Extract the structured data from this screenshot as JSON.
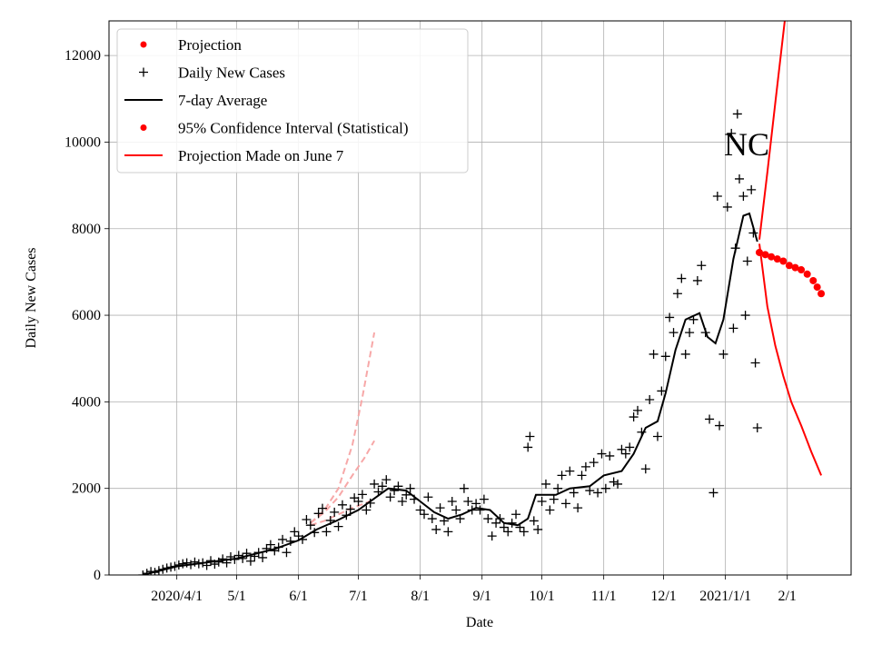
{
  "chart_data": {
    "type": "scatter",
    "xlabel": "Date",
    "ylabel": "Daily New Cases",
    "annotation": "NC",
    "grid": true,
    "legend_position": "top-left",
    "xlim": [
      "2020-02-27",
      "2021-03-05"
    ],
    "ylim": [
      0,
      12800
    ],
    "x_ticks": [
      {
        "date": "2020-04-01",
        "label": "2020/4/1"
      },
      {
        "date": "2020-05-01",
        "label": "5/1"
      },
      {
        "date": "2020-06-01",
        "label": "6/1"
      },
      {
        "date": "2020-07-01",
        "label": "7/1"
      },
      {
        "date": "2020-08-01",
        "label": "8/1"
      },
      {
        "date": "2020-09-01",
        "label": "9/1"
      },
      {
        "date": "2020-10-01",
        "label": "10/1"
      },
      {
        "date": "2020-11-01",
        "label": "11/1"
      },
      {
        "date": "2020-12-01",
        "label": "12/1"
      },
      {
        "date": "2021-01-01",
        "label": "2021/1/1"
      },
      {
        "date": "2021-02-01",
        "label": "2/1"
      }
    ],
    "y_ticks": [
      0,
      2000,
      4000,
      6000,
      8000,
      10000,
      12000
    ],
    "legend": [
      {
        "label": "Projection",
        "marker": "dot",
        "color": "#ff0000"
      },
      {
        "label": "Daily New Cases",
        "marker": "plus",
        "color": "#000000"
      },
      {
        "label": "7-day Average",
        "marker": "line",
        "color": "#000000"
      },
      {
        "label": "95% Confidence Interval (Statistical)",
        "marker": "dot",
        "color": "#ff0000"
      },
      {
        "label": "Projection Made on June 7",
        "marker": "line",
        "color": "#ff0000"
      }
    ],
    "series": [
      {
        "name": "Daily New Cases",
        "kind": "scatter",
        "color": "#000000",
        "points": [
          [
            "2020-03-15",
            0
          ],
          [
            "2020-03-17",
            40
          ],
          [
            "2020-03-19",
            80
          ],
          [
            "2020-03-21",
            60
          ],
          [
            "2020-03-23",
            100
          ],
          [
            "2020-03-25",
            130
          ],
          [
            "2020-03-27",
            160
          ],
          [
            "2020-03-29",
            180
          ],
          [
            "2020-03-31",
            200
          ],
          [
            "2020-04-02",
            230
          ],
          [
            "2020-04-04",
            260
          ],
          [
            "2020-04-06",
            280
          ],
          [
            "2020-04-08",
            240
          ],
          [
            "2020-04-10",
            300
          ],
          [
            "2020-04-12",
            260
          ],
          [
            "2020-04-14",
            280
          ],
          [
            "2020-04-16",
            220
          ],
          [
            "2020-04-18",
            330
          ],
          [
            "2020-04-20",
            250
          ],
          [
            "2020-04-22",
            300
          ],
          [
            "2020-04-24",
            370
          ],
          [
            "2020-04-26",
            280
          ],
          [
            "2020-04-28",
            420
          ],
          [
            "2020-04-30",
            360
          ],
          [
            "2020-05-02",
            450
          ],
          [
            "2020-05-04",
            380
          ],
          [
            "2020-05-06",
            500
          ],
          [
            "2020-05-08",
            320
          ],
          [
            "2020-05-10",
            430
          ],
          [
            "2020-05-12",
            520
          ],
          [
            "2020-05-14",
            400
          ],
          [
            "2020-05-16",
            610
          ],
          [
            "2020-05-18",
            700
          ],
          [
            "2020-05-20",
            560
          ],
          [
            "2020-05-22",
            640
          ],
          [
            "2020-05-24",
            820
          ],
          [
            "2020-05-26",
            520
          ],
          [
            "2020-05-28",
            780
          ],
          [
            "2020-05-30",
            1000
          ],
          [
            "2020-06-01",
            900
          ],
          [
            "2020-06-03",
            820
          ],
          [
            "2020-06-05",
            1280
          ],
          [
            "2020-06-07",
            1150
          ],
          [
            "2020-06-09",
            980
          ],
          [
            "2020-06-11",
            1420
          ],
          [
            "2020-06-13",
            1540
          ],
          [
            "2020-06-15",
            1000
          ],
          [
            "2020-06-17",
            1260
          ],
          [
            "2020-06-19",
            1450
          ],
          [
            "2020-06-21",
            1120
          ],
          [
            "2020-06-23",
            1620
          ],
          [
            "2020-06-25",
            1380
          ],
          [
            "2020-06-27",
            1520
          ],
          [
            "2020-06-29",
            1780
          ],
          [
            "2020-07-01",
            1700
          ],
          [
            "2020-07-03",
            1860
          ],
          [
            "2020-07-05",
            1500
          ],
          [
            "2020-07-07",
            1660
          ],
          [
            "2020-07-09",
            2100
          ],
          [
            "2020-07-11",
            1920
          ],
          [
            "2020-07-13",
            2050
          ],
          [
            "2020-07-15",
            2200
          ],
          [
            "2020-07-17",
            1800
          ],
          [
            "2020-07-19",
            1950
          ],
          [
            "2020-07-21",
            2050
          ],
          [
            "2020-07-23",
            1700
          ],
          [
            "2020-07-25",
            1850
          ],
          [
            "2020-07-27",
            2000
          ],
          [
            "2020-07-29",
            1750
          ],
          [
            "2020-08-01",
            1500
          ],
          [
            "2020-08-03",
            1400
          ],
          [
            "2020-08-05",
            1800
          ],
          [
            "2020-08-07",
            1300
          ],
          [
            "2020-08-09",
            1050
          ],
          [
            "2020-08-11",
            1550
          ],
          [
            "2020-08-13",
            1250
          ],
          [
            "2020-08-15",
            1000
          ],
          [
            "2020-08-17",
            1700
          ],
          [
            "2020-08-19",
            1500
          ],
          [
            "2020-08-21",
            1300
          ],
          [
            "2020-08-23",
            2000
          ],
          [
            "2020-08-25",
            1700
          ],
          [
            "2020-08-27",
            1500
          ],
          [
            "2020-08-29",
            1650
          ],
          [
            "2020-08-31",
            1500
          ],
          [
            "2020-09-02",
            1750
          ],
          [
            "2020-09-04",
            1300
          ],
          [
            "2020-09-06",
            900
          ],
          [
            "2020-09-08",
            1200
          ],
          [
            "2020-09-10",
            1300
          ],
          [
            "2020-09-12",
            1100
          ],
          [
            "2020-09-14",
            1000
          ],
          [
            "2020-09-16",
            1200
          ],
          [
            "2020-09-18",
            1400
          ],
          [
            "2020-09-20",
            1100
          ],
          [
            "2020-09-22",
            1000
          ],
          [
            "2020-09-24",
            2950
          ],
          [
            "2020-09-25",
            3200
          ],
          [
            "2020-09-27",
            1250
          ],
          [
            "2020-09-29",
            1050
          ],
          [
            "2020-10-01",
            1700
          ],
          [
            "2020-10-03",
            2100
          ],
          [
            "2020-10-05",
            1500
          ],
          [
            "2020-10-07",
            1750
          ],
          [
            "2020-10-09",
            2000
          ],
          [
            "2020-10-11",
            2300
          ],
          [
            "2020-10-13",
            1650
          ],
          [
            "2020-10-15",
            2400
          ],
          [
            "2020-10-17",
            1900
          ],
          [
            "2020-10-19",
            1550
          ],
          [
            "2020-10-21",
            2300
          ],
          [
            "2020-10-23",
            2500
          ],
          [
            "2020-10-25",
            1950
          ],
          [
            "2020-10-27",
            2600
          ],
          [
            "2020-10-29",
            1900
          ],
          [
            "2020-10-31",
            2800
          ],
          [
            "2020-11-02",
            2000
          ],
          [
            "2020-11-04",
            2750
          ],
          [
            "2020-11-06",
            2150
          ],
          [
            "2020-11-08",
            2100
          ],
          [
            "2020-11-10",
            2900
          ],
          [
            "2020-11-12",
            2800
          ],
          [
            "2020-11-14",
            2950
          ],
          [
            "2020-11-16",
            3650
          ],
          [
            "2020-11-18",
            3800
          ],
          [
            "2020-11-20",
            3300
          ],
          [
            "2020-11-22",
            2450
          ],
          [
            "2020-11-24",
            4050
          ],
          [
            "2020-11-26",
            5100
          ],
          [
            "2020-11-28",
            3200
          ],
          [
            "2020-11-30",
            4250
          ],
          [
            "2020-12-02",
            5050
          ],
          [
            "2020-12-04",
            5950
          ],
          [
            "2020-12-06",
            5600
          ],
          [
            "2020-12-08",
            6500
          ],
          [
            "2020-12-10",
            6850
          ],
          [
            "2020-12-12",
            5100
          ],
          [
            "2020-12-14",
            5600
          ],
          [
            "2020-12-16",
            5900
          ],
          [
            "2020-12-18",
            6800
          ],
          [
            "2020-12-20",
            7150
          ],
          [
            "2020-12-22",
            5600
          ],
          [
            "2020-12-24",
            3600
          ],
          [
            "2020-12-26",
            1900
          ],
          [
            "2020-12-28",
            8750
          ],
          [
            "2020-12-29",
            3450
          ],
          [
            "2020-12-31",
            5100
          ],
          [
            "2021-01-02",
            8500
          ],
          [
            "2021-01-04",
            10200
          ],
          [
            "2021-01-05",
            5700
          ],
          [
            "2021-01-06",
            7550
          ],
          [
            "2021-01-07",
            10650
          ],
          [
            "2021-01-08",
            9150
          ],
          [
            "2021-01-10",
            8750
          ],
          [
            "2021-01-11",
            6000
          ],
          [
            "2021-01-12",
            7250
          ],
          [
            "2021-01-14",
            8900
          ],
          [
            "2021-01-15",
            7900
          ],
          [
            "2021-01-16",
            4900
          ],
          [
            "2021-01-17",
            3400
          ]
        ]
      },
      {
        "name": "7-day Average",
        "kind": "line",
        "color": "#000000",
        "points": [
          [
            "2020-03-15",
            0
          ],
          [
            "2020-04-01",
            200
          ],
          [
            "2020-05-01",
            380
          ],
          [
            "2020-05-20",
            600
          ],
          [
            "2020-06-01",
            800
          ],
          [
            "2020-06-10",
            1050
          ],
          [
            "2020-06-20",
            1250
          ],
          [
            "2020-07-01",
            1500
          ],
          [
            "2020-07-10",
            1800
          ],
          [
            "2020-07-16",
            2000
          ],
          [
            "2020-07-25",
            1950
          ],
          [
            "2020-08-01",
            1700
          ],
          [
            "2020-08-08",
            1450
          ],
          [
            "2020-08-15",
            1300
          ],
          [
            "2020-08-22",
            1400
          ],
          [
            "2020-08-29",
            1550
          ],
          [
            "2020-09-05",
            1500
          ],
          [
            "2020-09-12",
            1200
          ],
          [
            "2020-09-19",
            1150
          ],
          [
            "2020-09-24",
            1300
          ],
          [
            "2020-09-28",
            1850
          ],
          [
            "2020-10-02",
            1850
          ],
          [
            "2020-10-08",
            1850
          ],
          [
            "2020-10-15",
            2000
          ],
          [
            "2020-10-25",
            2050
          ],
          [
            "2020-11-01",
            2300
          ],
          [
            "2020-11-10",
            2400
          ],
          [
            "2020-11-16",
            2800
          ],
          [
            "2020-11-22",
            3400
          ],
          [
            "2020-11-28",
            3550
          ],
          [
            "2020-12-02",
            4200
          ],
          [
            "2020-12-07",
            5200
          ],
          [
            "2020-12-12",
            5900
          ],
          [
            "2020-12-19",
            6050
          ],
          [
            "2020-12-23",
            5500
          ],
          [
            "2020-12-27",
            5350
          ],
          [
            "2020-12-31",
            5900
          ],
          [
            "2021-01-05",
            7300
          ],
          [
            "2021-01-10",
            8300
          ],
          [
            "2021-01-13",
            8350
          ],
          [
            "2021-01-17",
            7700
          ]
        ]
      },
      {
        "name": "Projection",
        "kind": "dots",
        "color": "#ff0000",
        "points": [
          [
            "2021-01-18",
            7450
          ],
          [
            "2021-01-21",
            7400
          ],
          [
            "2021-01-24",
            7350
          ],
          [
            "2021-01-27",
            7300
          ],
          [
            "2021-01-30",
            7250
          ],
          [
            "2021-02-02",
            7150
          ],
          [
            "2021-02-05",
            7100
          ],
          [
            "2021-02-08",
            7050
          ],
          [
            "2021-02-11",
            6950
          ],
          [
            "2021-02-14",
            6800
          ],
          [
            "2021-02-16",
            6650
          ],
          [
            "2021-02-18",
            6500
          ]
        ]
      },
      {
        "name": "95% Confidence Interval (Statistical)",
        "kind": "band",
        "color": "#ff0000",
        "upper": [
          [
            "2021-01-18",
            7750
          ],
          [
            "2021-01-22",
            9300
          ],
          [
            "2021-01-26",
            10900
          ],
          [
            "2021-01-30",
            12500
          ],
          [
            "2021-02-01",
            13300
          ]
        ],
        "lower": [
          [
            "2021-01-18",
            7650
          ],
          [
            "2021-01-22",
            6200
          ],
          [
            "2021-01-26",
            5300
          ],
          [
            "2021-01-30",
            4600
          ],
          [
            "2021-02-03",
            4000
          ],
          [
            "2021-02-08",
            3450
          ],
          [
            "2021-02-13",
            2850
          ],
          [
            "2021-02-18",
            2300
          ]
        ]
      },
      {
        "name": "Projection Made on June 7",
        "kind": "dashed",
        "color": "#f7a8a8",
        "lines": [
          [
            [
              "2020-06-07",
              1200
            ],
            [
              "2020-06-14",
              1500
            ],
            [
              "2020-06-21",
              2000
            ],
            [
              "2020-06-28",
              3000
            ],
            [
              "2020-07-03",
              4100
            ],
            [
              "2020-07-09",
              5600
            ]
          ],
          [
            [
              "2020-06-07",
              1200
            ],
            [
              "2020-06-14",
              1450
            ],
            [
              "2020-06-21",
              1800
            ],
            [
              "2020-06-28",
              2300
            ],
            [
              "2020-07-04",
              2700
            ],
            [
              "2020-07-09",
              3100
            ]
          ],
          [
            [
              "2020-06-07",
              1150
            ],
            [
              "2020-06-14",
              1250
            ],
            [
              "2020-06-21",
              1400
            ],
            [
              "2020-06-28",
              1550
            ],
            [
              "2020-07-04",
              1650
            ],
            [
              "2020-07-09",
              1750
            ]
          ]
        ]
      }
    ]
  }
}
